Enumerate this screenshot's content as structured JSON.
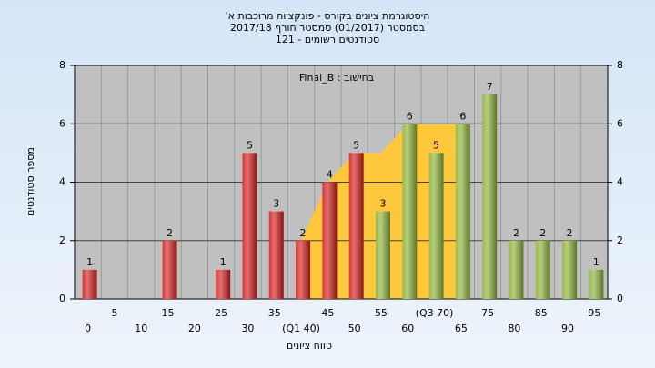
{
  "chart_data": {
    "type": "bar",
    "title": "היסטוגרמת ציונים בקורס - פונקציות מרוכבות א'",
    "subtitle": "בסמסטר  (01/2017)  סמסטר חורף 2017/18",
    "subtitle2": "סטודנטים רשומים - 121",
    "annotation": "בחישוב : Final_B",
    "x_label": "טווח ציונים",
    "y_label": "מספר סטודנטים",
    "categories": [
      "0",
      "5",
      "10",
      "15",
      "20",
      "25",
      "30",
      "35",
      "(Q1 40)",
      "45",
      "50",
      "55",
      "60",
      "(Q3 70)",
      "65",
      "75",
      "80",
      "85",
      "90",
      "95"
    ],
    "values": [
      1,
      0,
      0,
      2,
      0,
      1,
      5,
      3,
      2,
      4,
      5,
      3,
      6,
      5,
      6,
      7,
      2,
      2,
      2,
      1
    ],
    "colors": [
      "#d62020",
      "#d62020",
      "#d62020",
      "#d62020",
      "#d62020",
      "#d62020",
      "#d62020",
      "#d62020",
      "#d62020",
      "#d62020",
      "#d62020",
      "#8db43a",
      "#8db43a",
      "#8db43a",
      "#8db43a",
      "#8db43a",
      "#8db43a",
      "#8db43a",
      "#8db43a",
      "#8db43a"
    ],
    "band": {
      "color": "#ffc83c",
      "values": [
        null,
        null,
        null,
        null,
        null,
        null,
        null,
        null,
        2,
        4,
        5,
        5,
        6,
        6,
        6,
        null,
        null,
        null,
        null,
        null
      ]
    },
    "ylim": [
      0,
      8
    ],
    "yticks": [
      0,
      2,
      4,
      6,
      8
    ],
    "y2lim": [
      0,
      8
    ],
    "y2ticks": [
      0,
      2,
      4,
      6,
      8
    ],
    "grid": true
  }
}
